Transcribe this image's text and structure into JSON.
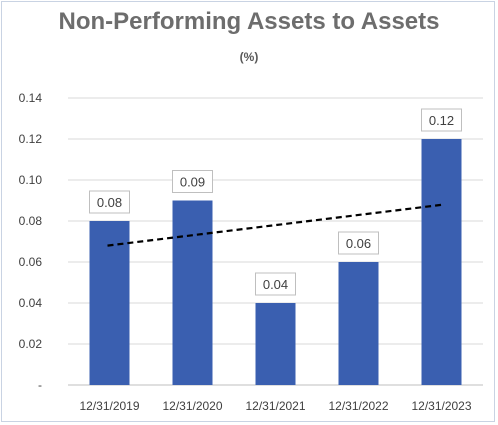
{
  "chart_data": {
    "type": "bar",
    "title": "Non-Performing Assets to Assets",
    "subtitle": "(%)",
    "categories": [
      "12/31/2019",
      "12/31/2020",
      "12/31/2021",
      "12/31/2022",
      "12/31/2023"
    ],
    "values": [
      0.08,
      0.09,
      0.04,
      0.06,
      0.12
    ],
    "data_labels": [
      "0.08",
      "0.09",
      "0.04",
      "0.06",
      "0.12"
    ],
    "ylim": [
      0,
      0.14
    ],
    "yticks": [
      0,
      0.02,
      0.04,
      0.06,
      0.08,
      0.1,
      0.12,
      0.14
    ],
    "ytick_labels": [
      "-",
      "0.02",
      "0.04",
      "0.06",
      "0.08",
      "0.10",
      "0.12",
      "0.14"
    ],
    "trendline": {
      "type": "linear",
      "style": "dashed",
      "color": "#000000"
    },
    "bar_color": "#3a5fb0",
    "grid": true,
    "legend": "none"
  }
}
